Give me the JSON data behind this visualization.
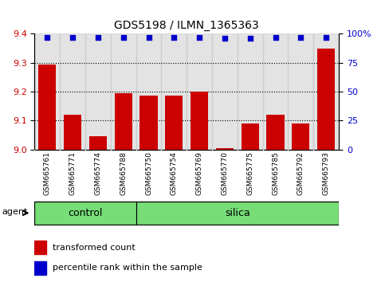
{
  "title": "GDS5198 / ILMN_1365363",
  "samples": [
    "GSM665761",
    "GSM665771",
    "GSM665774",
    "GSM665788",
    "GSM665750",
    "GSM665754",
    "GSM665769",
    "GSM665770",
    "GSM665775",
    "GSM665785",
    "GSM665792",
    "GSM665793"
  ],
  "bar_values": [
    9.295,
    9.12,
    9.045,
    9.195,
    9.185,
    9.185,
    9.2,
    9.005,
    9.09,
    9.12,
    9.09,
    9.35
  ],
  "percentile_values": [
    97,
    97,
    97,
    97,
    97,
    97,
    97,
    96,
    96,
    97,
    97,
    97
  ],
  "groups": [
    {
      "label": "control",
      "start": 0,
      "end": 4
    },
    {
      "label": "silica",
      "start": 4,
      "end": 12
    }
  ],
  "bar_color": "#cc0000",
  "dot_color": "#0000cc",
  "ylim_left": [
    9.0,
    9.4
  ],
  "ylim_right": [
    0,
    100
  ],
  "yticks_left": [
    9.0,
    9.1,
    9.2,
    9.3,
    9.4
  ],
  "yticks_right": [
    0,
    25,
    50,
    75,
    100
  ],
  "ylabel_left_color": "#cc0000",
  "ylabel_right_color": "#0000cc",
  "group_bg_color": "#77dd77",
  "sample_bg_color": "#c8c8c8",
  "legend_bar_label": "transformed count",
  "legend_dot_label": "percentile rank within the sample",
  "agent_label": "agent",
  "bar_width": 0.7,
  "grid_ticks": [
    9.1,
    9.2,
    9.3
  ]
}
